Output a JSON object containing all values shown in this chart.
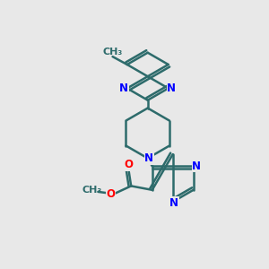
{
  "bg_color": "#e8e8e8",
  "bond_color": "#2d6b6b",
  "N_color": "#0000ff",
  "O_color": "#ff0000",
  "line_width": 1.8,
  "font_size": 8.5,
  "figsize": [
    3.0,
    3.0
  ],
  "dpi": 100,
  "xlim": [
    0,
    10
  ],
  "ylim": [
    0,
    10
  ]
}
